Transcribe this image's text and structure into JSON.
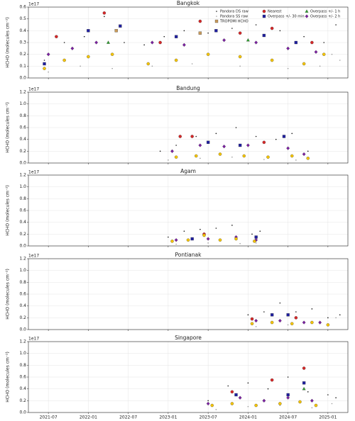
{
  "chart_data": [
    {
      "type": "scatter",
      "title": "Bangkok",
      "ylabel": "HCHO (molecules cm⁻²)",
      "y_offset_label": "1e17",
      "legend": "upper right",
      "grid": true,
      "xlim": [
        2021.25,
        2025.25
      ],
      "ylim": [
        0,
        0.6
      ],
      "yticks": [
        {
          "value": 0,
          "label": "0.0"
        },
        {
          "value": 0.1,
          "label": "0.1"
        },
        {
          "value": 0.2,
          "label": "0.2"
        },
        {
          "value": 0.3,
          "label": "0.3"
        },
        {
          "value": 0.4,
          "label": "0.4"
        },
        {
          "value": 0.5,
          "label": "0.5"
        },
        {
          "value": 0.6,
          "label": "0.6"
        }
      ],
      "series": [
        {
          "name": "Pandora DS raw",
          "color": "#111111",
          "marker": "dot",
          "x": [
            2021.45,
            2021.7,
            2021.95,
            2022.2,
            2022.45,
            2022.7,
            2022.95,
            2023.2,
            2023.5,
            2023.8,
            2024.1,
            2024.4,
            2024.7,
            2024.95,
            2025.1
          ],
          "values": [
            0.15,
            0.3,
            0.35,
            0.52,
            0.3,
            0.28,
            0.35,
            0.4,
            0.38,
            0.42,
            0.45,
            0.4,
            0.35,
            0.3,
            0.45
          ]
        },
        {
          "name": "Pandora SS raw",
          "color": "#999999",
          "marker": "dot",
          "x": [
            2021.5,
            2021.9,
            2022.3,
            2022.8,
            2023.3,
            2023.9,
            2024.5,
            2024.9,
            2025.05,
            2025.15
          ],
          "values": [
            0.05,
            0.1,
            0.08,
            0.1,
            0.12,
            0.1,
            0.08,
            0.1,
            0.2,
            0.15
          ]
        },
        {
          "name": "TROPOMI HCHO",
          "color": "#c89a5a",
          "marker": "square",
          "x": [
            2022.35,
            2023.4
          ],
          "values": [
            0.4,
            0.38
          ]
        },
        {
          "name": "Nearest",
          "color": "#d62728",
          "marker": "circle",
          "x": [
            2021.6,
            2022.2,
            2022.9,
            2023.4,
            2023.9,
            2024.3,
            2024.8
          ],
          "values": [
            0.35,
            0.55,
            0.3,
            0.48,
            0.38,
            0.42,
            0.3
          ]
        },
        {
          "name": "Overpass +/- 30 min",
          "color": "#1f1fa0",
          "marker": "square",
          "x": [
            2021.45,
            2022.0,
            2022.4,
            2023.1,
            2023.6,
            2024.2,
            2024.6
          ],
          "values": [
            0.12,
            0.4,
            0.44,
            0.35,
            0.4,
            0.36,
            0.3
          ]
        },
        {
          "name": "Overpass +/- 1 h",
          "color": "#2ca02c",
          "marker": "triangle",
          "x": [
            2022.25,
            2024.0
          ],
          "values": [
            0.3,
            0.32
          ]
        },
        {
          "name": "Overpass +/- 2 h",
          "color": "#7b1fa2",
          "marker": "diamond",
          "x": [
            2021.5,
            2021.8,
            2022.1,
            2022.8,
            2023.2,
            2023.7,
            2024.1,
            2024.5,
            2024.85
          ],
          "values": [
            0.2,
            0.25,
            0.3,
            0.3,
            0.28,
            0.32,
            0.3,
            0.25,
            0.22
          ]
        },
        {
          "color": "#f5c400",
          "marker": "circle",
          "x": [
            2021.45,
            2021.7,
            2022.0,
            2022.3,
            2022.75,
            2023.1,
            2023.5,
            2023.9,
            2024.3,
            2024.7,
            2024.95
          ],
          "values": [
            0.08,
            0.15,
            0.18,
            0.2,
            0.12,
            0.15,
            0.2,
            0.18,
            0.15,
            0.12,
            0.2
          ]
        }
      ]
    },
    {
      "type": "scatter",
      "title": "Bandung",
      "ylabel": "HCHO (molecules cm⁻²)",
      "y_offset_label": "1e17",
      "grid": true,
      "xlim": [
        2021.25,
        2025.25
      ],
      "ylim": [
        0,
        1.2
      ],
      "yticks": [
        {
          "value": 0,
          "label": "0.0"
        },
        {
          "value": 0.2,
          "label": "0.2"
        },
        {
          "value": 0.4,
          "label": "0.4"
        },
        {
          "value": 0.6,
          "label": "0.6"
        },
        {
          "value": 0.8,
          "label": "0.8"
        },
        {
          "value": 1,
          "label": "1.0"
        },
        {
          "value": 1.2,
          "label": "1.2"
        }
      ],
      "series": [
        {
          "color": "#111111",
          "marker": "dot",
          "x": [
            2022.9,
            2023.1,
            2023.35,
            2023.6,
            2023.85,
            2024.1,
            2024.35,
            2024.55,
            2024.75
          ],
          "values": [
            0.2,
            0.3,
            0.45,
            0.5,
            0.6,
            0.45,
            0.4,
            0.5,
            0.2
          ]
        },
        {
          "color": "#999999",
          "marker": "dot",
          "x": [
            2023.0,
            2023.4,
            2023.8,
            2024.2,
            2024.6
          ],
          "values": [
            0.05,
            0.08,
            0.1,
            0.06,
            0.05
          ]
        },
        {
          "color": "#d62728",
          "marker": "circle",
          "x": [
            2023.15,
            2023.3,
            2024.2
          ],
          "values": [
            0.45,
            0.45,
            0.35
          ]
        },
        {
          "color": "#1f1fa0",
          "marker": "square",
          "x": [
            2023.5,
            2024.45,
            2023.9
          ],
          "values": [
            0.35,
            0.45,
            0.3
          ]
        },
        {
          "color": "#7b1fa2",
          "marker": "diamond",
          "x": [
            2023.05,
            2023.4,
            2023.7,
            2024.0,
            2024.5,
            2024.7
          ],
          "values": [
            0.2,
            0.3,
            0.28,
            0.3,
            0.25,
            0.15
          ]
        },
        {
          "color": "#f5c400",
          "marker": "circle",
          "x": [
            2023.1,
            2023.35,
            2023.65,
            2023.95,
            2024.25,
            2024.55,
            2024.75
          ],
          "values": [
            0.1,
            0.12,
            0.15,
            0.12,
            0.1,
            0.12,
            0.08
          ]
        }
      ]
    },
    {
      "type": "scatter",
      "title": "Agam",
      "ylabel": "HCHO (molecules cm⁻²)",
      "y_offset_label": "1e17",
      "grid": true,
      "xlim": [
        2021.25,
        2025.25
      ],
      "ylim": [
        0,
        1.2
      ],
      "yticks": [
        {
          "value": 0,
          "label": "0.0"
        },
        {
          "value": 0.2,
          "label": "0.2"
        },
        {
          "value": 0.4,
          "label": "0.4"
        },
        {
          "value": 0.6,
          "label": "0.6"
        },
        {
          "value": 0.8,
          "label": "0.8"
        },
        {
          "value": 1,
          "label": "1.0"
        },
        {
          "value": 1.2,
          "label": "1.2"
        }
      ],
      "series": [
        {
          "color": "#111111",
          "marker": "dot",
          "x": [
            2023.0,
            2023.2,
            2023.4,
            2023.6,
            2023.8,
            2024.05,
            2024.15
          ],
          "values": [
            0.15,
            0.25,
            0.28,
            0.3,
            0.35,
            0.2,
            0.25
          ]
        },
        {
          "color": "#999999",
          "marker": "dot",
          "x": [
            2023.1,
            2023.5,
            2023.9,
            2024.1
          ],
          "values": [
            0.03,
            0.05,
            0.04,
            0.05
          ]
        },
        {
          "color": "#d62728",
          "marker": "circle",
          "x": [
            2023.45
          ],
          "values": [
            0.2
          ]
        },
        {
          "color": "#1f1fa0",
          "marker": "square",
          "x": [
            2023.3,
            2024.1
          ],
          "values": [
            0.12,
            0.15
          ]
        },
        {
          "color": "#7b1fa2",
          "marker": "diamond",
          "x": [
            2023.1,
            2023.5,
            2023.85,
            2024.1
          ],
          "values": [
            0.1,
            0.12,
            0.15,
            0.1
          ]
        },
        {
          "color": "#f5c400",
          "marker": "circle",
          "x": [
            2023.05,
            2023.25,
            2023.45,
            2023.65,
            2023.85,
            2024.08
          ],
          "values": [
            0.08,
            0.1,
            0.18,
            0.1,
            0.12,
            0.08
          ]
        }
      ]
    },
    {
      "type": "scatter",
      "title": "Pontianak",
      "ylabel": "HCHO (molecules cm⁻²)",
      "y_offset_label": "1e17",
      "grid": true,
      "xlim": [
        2021.25,
        2025.25
      ],
      "ylim": [
        0,
        1.2
      ],
      "yticks": [
        {
          "value": 0,
          "label": "0.0"
        },
        {
          "value": 0.2,
          "label": "0.2"
        },
        {
          "value": 0.4,
          "label": "0.4"
        },
        {
          "value": 0.6,
          "label": "0.6"
        },
        {
          "value": 0.8,
          "label": "0.8"
        },
        {
          "value": 1,
          "label": "1.0"
        },
        {
          "value": 1.2,
          "label": "1.2"
        }
      ],
      "series": [
        {
          "color": "#111111",
          "marker": "dot",
          "x": [
            2024.0,
            2024.2,
            2024.4,
            2024.6,
            2024.8,
            2025.0,
            2025.15
          ],
          "values": [
            0.25,
            0.3,
            0.45,
            0.3,
            0.35,
            0.2,
            0.25
          ]
        },
        {
          "color": "#999999",
          "marker": "dot",
          "x": [
            2024.1,
            2024.5,
            2024.9,
            2025.1
          ],
          "values": [
            0.05,
            0.08,
            0.1,
            0.2
          ]
        },
        {
          "color": "#d62728",
          "marker": "circle",
          "x": [
            2024.05,
            2024.6
          ],
          "values": [
            0.18,
            0.2
          ]
        },
        {
          "color": "#1f1fa0",
          "marker": "square",
          "x": [
            2024.3,
            2024.5
          ],
          "values": [
            0.25,
            0.25
          ]
        },
        {
          "color": "#7b1fa2",
          "marker": "diamond",
          "x": [
            2024.1,
            2024.4,
            2024.7,
            2024.9
          ],
          "values": [
            0.15,
            0.15,
            0.12,
            0.12
          ]
        },
        {
          "color": "#f5c400",
          "marker": "circle",
          "x": [
            2024.05,
            2024.3,
            2024.55,
            2024.8,
            2025.0
          ],
          "values": [
            0.1,
            0.12,
            0.1,
            0.12,
            0.08
          ]
        }
      ]
    },
    {
      "type": "scatter",
      "title": "Singapore",
      "ylabel": "HCHO (molecules cm⁻²)",
      "y_offset_label": "1e17",
      "grid": true,
      "xlim": [
        2021.25,
        2025.25
      ],
      "ylim": [
        0,
        1.2
      ],
      "yticks": [
        {
          "value": 0,
          "label": "0.0"
        },
        {
          "value": 0.2,
          "label": "0.2"
        },
        {
          "value": 0.4,
          "label": "0.4"
        },
        {
          "value": 0.6,
          "label": "0.6"
        },
        {
          "value": 0.8,
          "label": "0.8"
        },
        {
          "value": 1,
          "label": "1.0"
        },
        {
          "value": 1.2,
          "label": "1.2"
        }
      ],
      "xticks": [
        {
          "value": 2021.5,
          "label": "2021-07"
        },
        {
          "value": 2022.0,
          "label": "2022-01"
        },
        {
          "value": 2022.5,
          "label": "2022-07"
        },
        {
          "value": 2023.0,
          "label": "2023-01"
        },
        {
          "value": 2023.5,
          "label": "2023-07"
        },
        {
          "value": 2024.0,
          "label": "2024-01"
        },
        {
          "value": 2024.5,
          "label": "2024-07"
        },
        {
          "value": 2025.0,
          "label": "2025-01"
        }
      ],
      "series": [
        {
          "color": "#111111",
          "marker": "dot",
          "x": [
            2023.5,
            2023.75,
            2024.0,
            2024.25,
            2024.5,
            2024.75,
            2025.0,
            2025.1
          ],
          "values": [
            0.2,
            0.45,
            0.5,
            0.4,
            0.6,
            0.35,
            0.3,
            0.25
          ]
        },
        {
          "color": "#999999",
          "marker": "dot",
          "x": [
            2023.6,
            2024.0,
            2024.4,
            2024.8,
            2025.05
          ],
          "values": [
            0.05,
            0.1,
            0.12,
            0.08,
            0.15
          ]
        },
        {
          "color": "#d62728",
          "marker": "circle",
          "x": [
            2023.8,
            2024.3,
            2024.7
          ],
          "values": [
            0.35,
            0.55,
            0.75
          ]
        },
        {
          "color": "#1f1fa0",
          "marker": "square",
          "x": [
            2023.85,
            2024.5,
            2024.7
          ],
          "values": [
            0.3,
            0.3,
            0.5
          ]
        },
        {
          "color": "#2ca02c",
          "marker": "triangle",
          "x": [
            2024.7
          ],
          "values": [
            0.4
          ]
        },
        {
          "color": "#7b1fa2",
          "marker": "diamond",
          "x": [
            2023.5,
            2023.9,
            2024.2,
            2024.5,
            2024.8
          ],
          "values": [
            0.15,
            0.25,
            0.2,
            0.25,
            0.2
          ]
        },
        {
          "color": "#f5c400",
          "marker": "circle",
          "x": [
            2023.55,
            2023.8,
            2024.1,
            2024.4,
            2024.65,
            2024.85
          ],
          "values": [
            0.12,
            0.15,
            0.12,
            0.15,
            0.18,
            0.12
          ]
        }
      ]
    }
  ]
}
